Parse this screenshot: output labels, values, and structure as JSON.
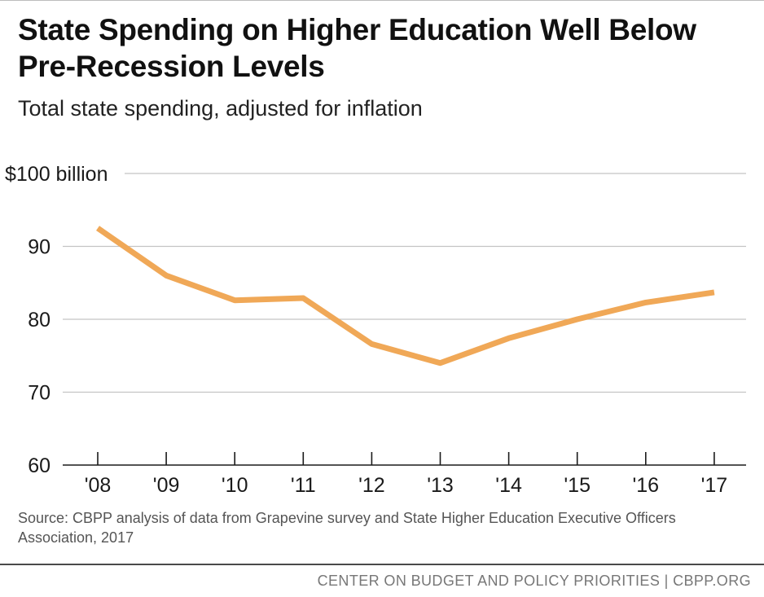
{
  "header": {
    "title": "State Spending on Higher Education Well Below Pre-Recession Levels",
    "subtitle": "Total state spending, adjusted for inflation"
  },
  "chart_data": {
    "type": "line",
    "categories": [
      "'08",
      "'09",
      "'10",
      "'11",
      "'12",
      "'13",
      "'14",
      "'15",
      "'16",
      "'17"
    ],
    "series": [
      {
        "values": [
          92.5,
          86,
          82.6,
          82.9,
          76.6,
          74,
          77.4,
          80,
          82.3,
          83.7
        ]
      }
    ],
    "ylim": [
      60,
      100
    ],
    "yticks": [
      60,
      70,
      80,
      90,
      100
    ],
    "ytick_labels": [
      "60",
      "70",
      "80",
      "90",
      "$100 billion"
    ],
    "grid": true,
    "line_color": "#f0a857",
    "xlabel": "",
    "ylabel": ""
  },
  "footnote": {
    "source": "Source: CBPP analysis of data from Grapevine survey and State Higher Education Executive Officers Association, 2017"
  },
  "footer": {
    "org": "CENTER ON BUDGET AND POLICY PRIORITIES | CBPP.ORG"
  }
}
